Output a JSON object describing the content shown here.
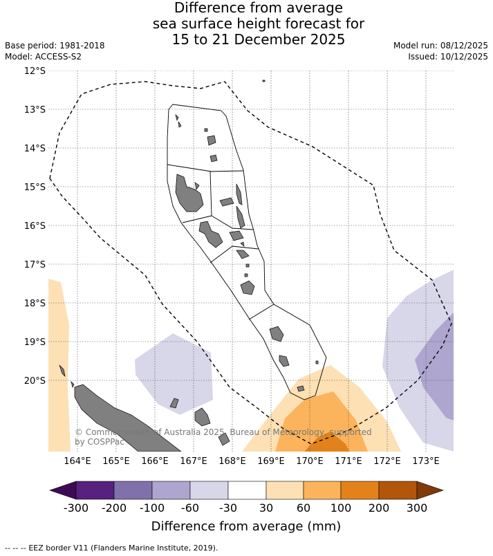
{
  "title": {
    "line1": "Difference from average",
    "line2": "sea surface height forecast for",
    "line3": "15 to 21 December 2025"
  },
  "meta": {
    "base_period": "Base period: 1981-2018",
    "model": "Model: ACCESS-S2",
    "model_run": "Model run: 08/12/2025",
    "issued": "Issued: 10/12/2025"
  },
  "map": {
    "lat_labels": [
      "12°S",
      "13°S",
      "14°S",
      "15°S",
      "16°S",
      "17°S",
      "18°S",
      "19°S",
      "20°S"
    ],
    "lon_labels": [
      "164°E",
      "165°E",
      "166°E",
      "167°E",
      "168°E",
      "169°E",
      "170°E",
      "171°E",
      "172°E",
      "173°E"
    ],
    "copyright_line1": "© Commonwealth of Australia 2025, Bureau of Meteorology, supported",
    "copyright_line2": "by COSPPac"
  },
  "colorbar": {
    "ticks": [
      "-300",
      "-200",
      "-100",
      "-60",
      "-30",
      "30",
      "60",
      "100",
      "200",
      "300"
    ],
    "title": "Difference from average (mm)",
    "colors": {
      "below_min": "#3f0a55",
      "bins": [
        "#56217f",
        "#8171ab",
        "#aea6ce",
        "#d8d7e9",
        "#ffffff",
        "#fde0b4",
        "#fbb45c",
        "#e3821a",
        "#b1560a"
      ],
      "above_max": "#7f3a08"
    }
  },
  "footer": {
    "legend_symbol": "--  --  --",
    "legend_text": "EEZ border V11 (Flanders Marine Institute, 2019)."
  }
}
